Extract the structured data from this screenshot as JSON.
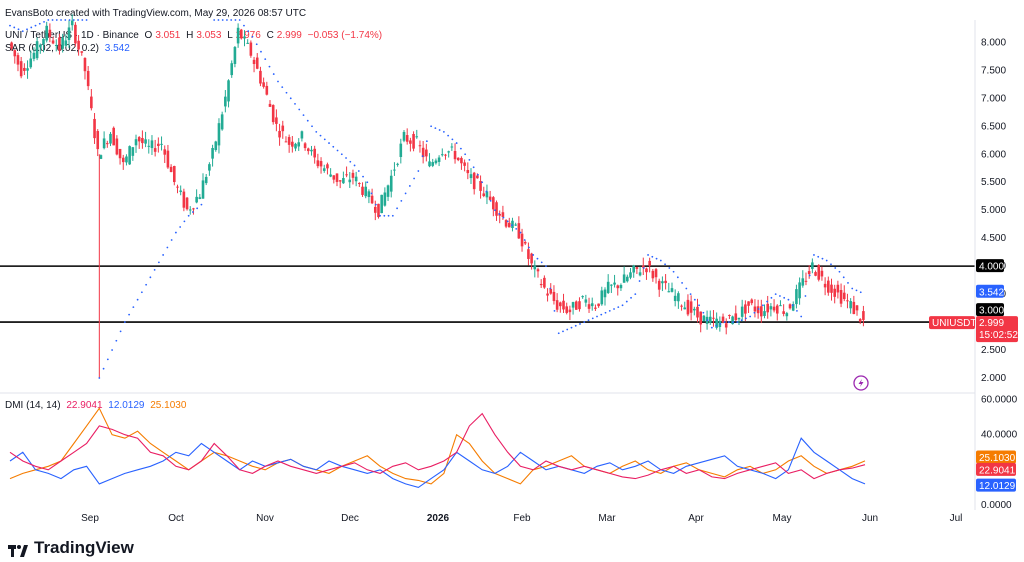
{
  "header": {
    "credit": "EvansBoto created with TradingView.com, May 29, 2026 08:57 UTC",
    "symbol": "UNI / TetherUS · 1D · Binance",
    "o_label": "O",
    "o_val": "3.051",
    "h_label": "H",
    "h_val": "3.053",
    "l_label": "L",
    "l_val": "2.976",
    "c_label": "C",
    "c_val": "2.999",
    "chg": "−0.053 (−1.74%)",
    "sar_label": "SAR (0.02, 0.02, 0.2)",
    "sar_val": "3.542",
    "dmi_label": "DMI (14, 14)",
    "dmi_plus": "22.9041",
    "dmi_minus": "12.0129",
    "adx": "25.1030"
  },
  "brand": "TradingView",
  "colors": {
    "up": "#22ab94",
    "down": "#f23645",
    "sar": "#2962ff",
    "plus": "#e91e63",
    "minus": "#2962ff",
    "adx": "#f57c00",
    "level": "#000000"
  },
  "chart_data": {
    "type": "candlestick",
    "price_axis": {
      "ticks": [
        "8.000",
        "7.500",
        "7.000",
        "6.500",
        "6.000",
        "5.500",
        "5.000",
        "4.500",
        "4.000",
        "3.500",
        "3.000",
        "2.500",
        "2.000"
      ],
      "range": [
        1.75,
        8.4
      ]
    },
    "x_axis": {
      "ticks": [
        "Sep",
        "Oct",
        "Nov",
        "Dec",
        "2026",
        "Feb",
        "Mar",
        "Apr",
        "May",
        "Jun",
        "Jul"
      ]
    },
    "levels": [
      {
        "price": 4.0,
        "label": "4.000"
      },
      {
        "price": 3.0,
        "label": "3.000"
      }
    ],
    "tags": {
      "sar": "3.542",
      "symbol": "UNIUSDT",
      "last": "2.999",
      "countdown": "15:02:52"
    },
    "price_path": [
      [
        0,
        8.0
      ],
      [
        1,
        7.5
      ],
      [
        2,
        7.8
      ],
      [
        3,
        8.2
      ],
      [
        4,
        7.9
      ],
      [
        5,
        8.3
      ],
      [
        6,
        7.5
      ],
      [
        7,
        6.0
      ],
      [
        8,
        6.4
      ],
      [
        9,
        5.8
      ],
      [
        10,
        6.3
      ],
      [
        11,
        6.1
      ],
      [
        12,
        6.2
      ],
      [
        13,
        5.5
      ],
      [
        14,
        5.0
      ],
      [
        15,
        5.3
      ],
      [
        16,
        6.0
      ],
      [
        17,
        7.0
      ],
      [
        18,
        8.2
      ],
      [
        19,
        7.8
      ],
      [
        20,
        7.2
      ],
      [
        21,
        6.5
      ],
      [
        22,
        6.2
      ],
      [
        23,
        6.3
      ],
      [
        24,
        5.9
      ],
      [
        25,
        5.7
      ],
      [
        26,
        5.5
      ],
      [
        27,
        5.6
      ],
      [
        28,
        5.3
      ],
      [
        29,
        5.0
      ],
      [
        30,
        5.6
      ],
      [
        31,
        6.3
      ],
      [
        32,
        6.2
      ],
      [
        33,
        5.8
      ],
      [
        34,
        6.1
      ],
      [
        35,
        6.0
      ],
      [
        36,
        5.6
      ],
      [
        37,
        5.4
      ],
      [
        38,
        5.1
      ],
      [
        39,
        4.8
      ],
      [
        40,
        4.6
      ],
      [
        41,
        4.0
      ],
      [
        42,
        3.6
      ],
      [
        43,
        3.3
      ],
      [
        44,
        3.2
      ],
      [
        45,
        3.4
      ],
      [
        46,
        3.3
      ],
      [
        47,
        3.6
      ],
      [
        48,
        3.7
      ],
      [
        49,
        3.9
      ],
      [
        50,
        4.0
      ],
      [
        51,
        3.7
      ],
      [
        52,
        3.5
      ],
      [
        53,
        3.3
      ],
      [
        54,
        3.1
      ],
      [
        55,
        3.0
      ],
      [
        56,
        3.0
      ],
      [
        57,
        3.1
      ],
      [
        58,
        3.3
      ],
      [
        59,
        3.2
      ],
      [
        60,
        3.3
      ],
      [
        61,
        3.2
      ],
      [
        62,
        3.6
      ],
      [
        63,
        4.0
      ],
      [
        64,
        3.7
      ],
      [
        65,
        3.5
      ],
      [
        66,
        3.3
      ],
      [
        67,
        3.0
      ]
    ],
    "sar_series": [
      [
        0,
        8.3
      ],
      [
        1,
        8.2
      ],
      [
        2,
        8.3
      ],
      [
        3,
        8.4
      ],
      [
        4,
        8.4
      ],
      [
        5,
        8.4
      ],
      [
        6,
        8.4
      ],
      [
        7,
        2.0
      ],
      [
        8,
        2.5
      ],
      [
        9,
        3.0
      ],
      [
        10,
        3.4
      ],
      [
        11,
        3.8
      ],
      [
        12,
        4.2
      ],
      [
        13,
        4.6
      ],
      [
        14,
        4.9
      ],
      [
        15,
        5.1
      ],
      [
        16,
        8.4
      ],
      [
        17,
        8.4
      ],
      [
        18,
        8.4
      ],
      [
        19,
        8.1
      ],
      [
        20,
        7.7
      ],
      [
        21,
        7.3
      ],
      [
        22,
        7.0
      ],
      [
        23,
        6.7
      ],
      [
        24,
        6.4
      ],
      [
        25,
        6.2
      ],
      [
        26,
        6.0
      ],
      [
        27,
        5.8
      ],
      [
        28,
        5.5
      ],
      [
        29,
        4.9
      ],
      [
        30,
        4.9
      ],
      [
        31,
        5.3
      ],
      [
        32,
        5.7
      ],
      [
        33,
        6.5
      ],
      [
        34,
        6.4
      ],
      [
        35,
        6.2
      ],
      [
        36,
        5.9
      ],
      [
        37,
        5.5
      ],
      [
        38,
        5.0
      ],
      [
        39,
        4.8
      ],
      [
        40,
        4.6
      ],
      [
        41,
        4.2
      ],
      [
        42,
        4.0
      ],
      [
        43,
        2.8
      ],
      [
        44,
        2.9
      ],
      [
        45,
        3.0
      ],
      [
        46,
        3.1
      ],
      [
        47,
        3.2
      ],
      [
        48,
        3.3
      ],
      [
        49,
        3.5
      ],
      [
        50,
        4.2
      ],
      [
        51,
        4.1
      ],
      [
        52,
        3.9
      ],
      [
        53,
        3.6
      ],
      [
        54,
        3.3
      ],
      [
        55,
        2.9
      ],
      [
        56,
        3.0
      ],
      [
        57,
        3.0
      ],
      [
        58,
        3.1
      ],
      [
        59,
        3.3
      ],
      [
        60,
        3.5
      ],
      [
        61,
        3.4
      ],
      [
        62,
        3.1
      ],
      [
        63,
        4.2
      ],
      [
        64,
        4.1
      ],
      [
        65,
        3.9
      ],
      [
        66,
        3.6
      ],
      [
        67,
        3.5
      ]
    ],
    "dmi_axis": {
      "ticks": [
        "60.0000",
        "40.0000",
        "0.0000"
      ],
      "range": [
        0,
        62
      ]
    },
    "dmi_tags": {
      "adx": "25.1030",
      "plus": "22.9041",
      "minus": "12.0129"
    },
    "dmi_plus": [
      30,
      25,
      22,
      20,
      25,
      30,
      35,
      45,
      43,
      40,
      38,
      30,
      28,
      22,
      20,
      25,
      35,
      28,
      20,
      18,
      22,
      25,
      22,
      20,
      18,
      20,
      22,
      24,
      20,
      18,
      22,
      24,
      20,
      22,
      25,
      30,
      45,
      52,
      40,
      30,
      22,
      20,
      25,
      22,
      20,
      22,
      20,
      18,
      16,
      15,
      17,
      20,
      22,
      18,
      20,
      16,
      15,
      18,
      20,
      22,
      24,
      18,
      20,
      15,
      18,
      20,
      21,
      22.9
    ],
    "dmi_minus": [
      25,
      30,
      20,
      18,
      15,
      20,
      22,
      12,
      15,
      18,
      20,
      22,
      25,
      30,
      28,
      35,
      30,
      25,
      20,
      25,
      22,
      24,
      26,
      22,
      20,
      25,
      22,
      20,
      18,
      20,
      15,
      12,
      10,
      15,
      20,
      30,
      25,
      20,
      18,
      22,
      30,
      25,
      20,
      22,
      20,
      18,
      22,
      24,
      20,
      22,
      25,
      20,
      18,
      22,
      24,
      26,
      28,
      22,
      20,
      18,
      15,
      20,
      38,
      30,
      25,
      20,
      15,
      12.0
    ],
    "dmi_adx": [
      15,
      18,
      20,
      22,
      25,
      35,
      45,
      55,
      40,
      38,
      42,
      35,
      30,
      25,
      20,
      25,
      30,
      28,
      25,
      22,
      20,
      24,
      26,
      22,
      20,
      18,
      22,
      25,
      28,
      22,
      18,
      15,
      14,
      12,
      18,
      40,
      35,
      25,
      18,
      15,
      12,
      20,
      22,
      25,
      28,
      22,
      20,
      18,
      22,
      25,
      20,
      18,
      22,
      24,
      20,
      18,
      16,
      20,
      22,
      18,
      20,
      25,
      28,
      22,
      18,
      20,
      22,
      25.1
    ]
  }
}
